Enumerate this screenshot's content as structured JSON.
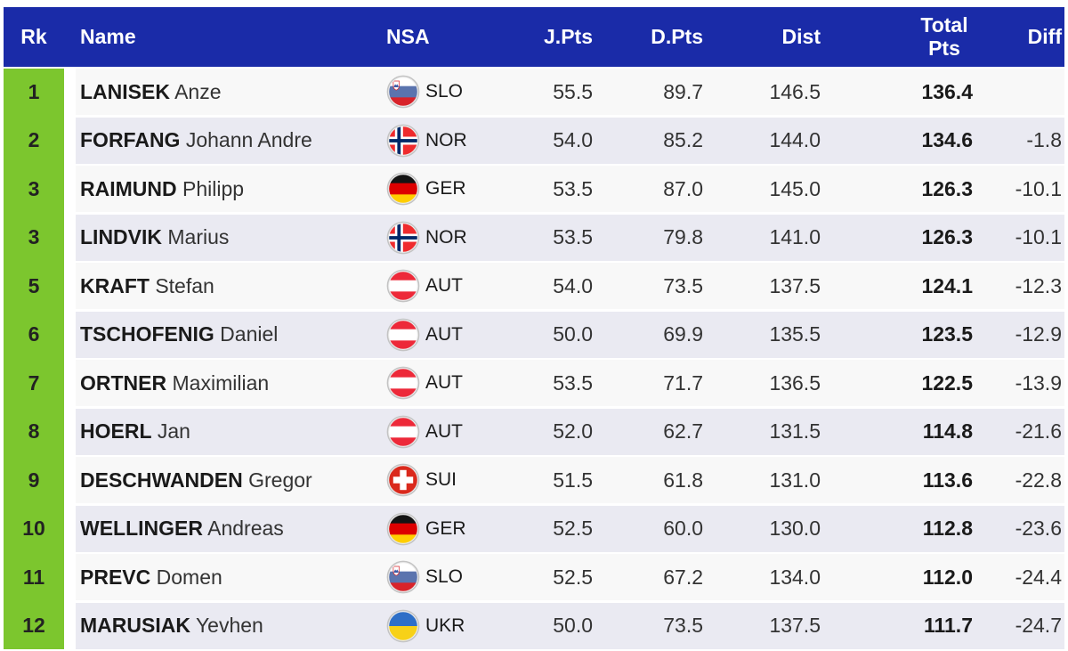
{
  "chart_data": {
    "type": "table",
    "columns": [
      "Rk",
      "Name",
      "NSA",
      "J.Pts",
      "D.Pts",
      "Dist",
      "Total Pts",
      "Diff"
    ],
    "rows": [
      {
        "rank": "1",
        "last": "LANISEK",
        "first": "Anze",
        "nsa": "SLO",
        "jpts": "55.5",
        "dpts": "89.7",
        "dist": "146.5",
        "total": "136.4",
        "diff": ""
      },
      {
        "rank": "2",
        "last": "FORFANG",
        "first": "Johann Andre",
        "nsa": "NOR",
        "jpts": "54.0",
        "dpts": "85.2",
        "dist": "144.0",
        "total": "134.6",
        "diff": "-1.8"
      },
      {
        "rank": "3",
        "last": "RAIMUND",
        "first": "Philipp",
        "nsa": "GER",
        "jpts": "53.5",
        "dpts": "87.0",
        "dist": "145.0",
        "total": "126.3",
        "diff": "-10.1"
      },
      {
        "rank": "3",
        "last": "LINDVIK",
        "first": "Marius",
        "nsa": "NOR",
        "jpts": "53.5",
        "dpts": "79.8",
        "dist": "141.0",
        "total": "126.3",
        "diff": "-10.1"
      },
      {
        "rank": "5",
        "last": "KRAFT",
        "first": "Stefan",
        "nsa": "AUT",
        "jpts": "54.0",
        "dpts": "73.5",
        "dist": "137.5",
        "total": "124.1",
        "diff": "-12.3"
      },
      {
        "rank": "6",
        "last": "TSCHOFENIG",
        "first": "Daniel",
        "nsa": "AUT",
        "jpts": "50.0",
        "dpts": "69.9",
        "dist": "135.5",
        "total": "123.5",
        "diff": "-12.9"
      },
      {
        "rank": "7",
        "last": "ORTNER",
        "first": "Maximilian",
        "nsa": "AUT",
        "jpts": "53.5",
        "dpts": "71.7",
        "dist": "136.5",
        "total": "122.5",
        "diff": "-13.9"
      },
      {
        "rank": "8",
        "last": "HOERL",
        "first": "Jan",
        "nsa": "AUT",
        "jpts": "52.0",
        "dpts": "62.7",
        "dist": "131.5",
        "total": "114.8",
        "diff": "-21.6"
      },
      {
        "rank": "9",
        "last": "DESCHWANDEN",
        "first": "Gregor",
        "nsa": "SUI",
        "jpts": "51.5",
        "dpts": "61.8",
        "dist": "131.0",
        "total": "113.6",
        "diff": "-22.8"
      },
      {
        "rank": "10",
        "last": "WELLINGER",
        "first": "Andreas",
        "nsa": "GER",
        "jpts": "52.5",
        "dpts": "60.0",
        "dist": "130.0",
        "total": "112.8",
        "diff": "-23.6"
      },
      {
        "rank": "11",
        "last": "PREVC",
        "first": "Domen",
        "nsa": "SLO",
        "jpts": "52.5",
        "dpts": "67.2",
        "dist": "134.0",
        "total": "112.0",
        "diff": "-24.4"
      },
      {
        "rank": "12",
        "last": "MARUSIAK",
        "first": "Yevhen",
        "nsa": "UKR",
        "jpts": "50.0",
        "dpts": "73.5",
        "dist": "137.5",
        "total": "111.7",
        "diff": "-24.7"
      }
    ]
  },
  "colors": {
    "header_bg": "#1A2BA8",
    "header_text": "#FFFFFF",
    "rank_bg": "#7CC62E",
    "rank_text": "#222222",
    "row_odd": "#F8F8F8",
    "row_even": "#EAEAF2",
    "name_text": "#1A1A1A",
    "value_text": "#333333"
  },
  "flags": {
    "SLO": {
      "type": "stripes",
      "colors": [
        "#FFFFFF",
        "#5B74AE",
        "#D8232A"
      ],
      "emblem": {
        "border": "#D8232A",
        "fill": "#FFFFFF",
        "mount": "#3D5BA9"
      }
    },
    "NOR": {
      "type": "nordic",
      "bg": "#EF2B2D",
      "cross": "#FFFFFF",
      "inner": "#002868"
    },
    "GER": {
      "type": "stripes",
      "colors": [
        "#141414",
        "#DD0000",
        "#FFCE00"
      ]
    },
    "AUT": {
      "type": "stripes",
      "colors": [
        "#ED2939",
        "#FFFFFF",
        "#ED2939"
      ]
    },
    "SUI": {
      "type": "plus",
      "bg": "#DA291C",
      "cross": "#FFFFFF"
    },
    "UKR": {
      "type": "stripes",
      "colors": [
        "#2E6FC7",
        "#F7D117"
      ]
    }
  }
}
